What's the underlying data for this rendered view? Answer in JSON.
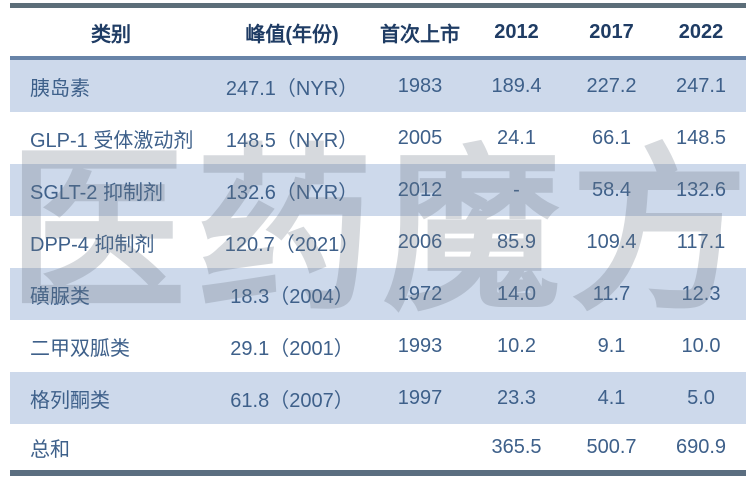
{
  "chart_data": {
    "type": "table",
    "columns": [
      "类别",
      "峰值(年份)",
      "首次上市",
      "2012",
      "2017",
      "2022"
    ],
    "rows": [
      {
        "category": "胰岛素",
        "peak": "247.1（NYR）",
        "first_launch": "1983",
        "y2012": "189.4",
        "y2017": "227.2",
        "y2022": "247.1"
      },
      {
        "category": "GLP-1 受体激动剂",
        "peak": "148.5（NYR）",
        "first_launch": "2005",
        "y2012": "24.1",
        "y2017": "66.1",
        "y2022": "148.5"
      },
      {
        "category": "SGLT-2 抑制剂",
        "peak": "132.6（NYR）",
        "first_launch": "2012",
        "y2012": "-",
        "y2017": "58.4",
        "y2022": "132.6"
      },
      {
        "category": "DPP-4 抑制剂",
        "peak": "120.7（2021）",
        "first_launch": "2006",
        "y2012": "85.9",
        "y2017": "109.4",
        "y2022": "117.1"
      },
      {
        "category": "磺脲类",
        "peak": "18.3（2004）",
        "first_launch": "1972",
        "y2012": "14.0",
        "y2017": "11.7",
        "y2022": "12.3"
      },
      {
        "category": "二甲双胍类",
        "peak": "29.1（2001）",
        "first_launch": "1993",
        "y2012": "10.2",
        "y2017": "9.1",
        "y2022": "10.0"
      },
      {
        "category": "格列酮类",
        "peak": "61.8（2007）",
        "first_launch": "1997",
        "y2012": "23.3",
        "y2017": "4.1",
        "y2022": "5.0"
      },
      {
        "category": "总和",
        "peak": "",
        "first_launch": "",
        "y2012": "365.5",
        "y2017": "500.7",
        "y2022": "690.9"
      }
    ]
  },
  "watermark": {
    "text": "医药魔方",
    "chars": [
      "医",
      "药",
      "魔",
      "方"
    ]
  },
  "colors": {
    "row_stripe": "#cdd9eb",
    "rule_top": "#5c6e79",
    "rule_header": "#6884a8",
    "rule_bottom": "#5b6e80",
    "header_text": "#1f3c64",
    "body_text": "#3e608a"
  }
}
